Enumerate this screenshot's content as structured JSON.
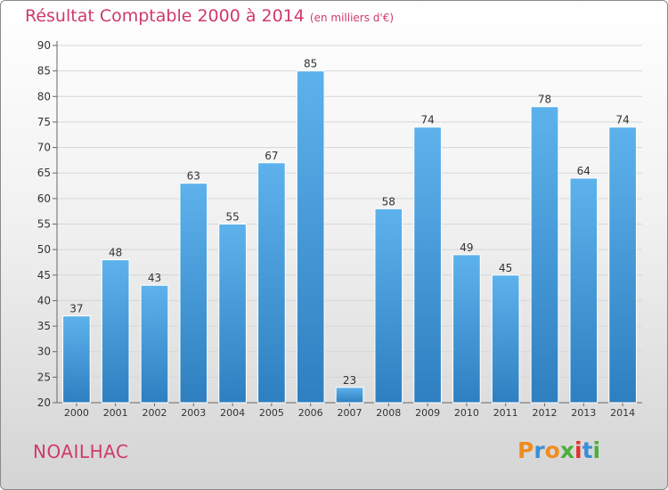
{
  "header": {
    "title": "Résultat Comptable 2000 à 2014",
    "subtitle": "(en milliers d'€)"
  },
  "region": "NOAILHAC",
  "logo": {
    "text": "Proxiti",
    "letter_colors": [
      "#f08c1e",
      "#3a8fd6",
      "#f08c1e",
      "#4cae3c",
      "#e23030",
      "#3a8fd6",
      "#4cae3c"
    ]
  },
  "colors": {
    "bar_top": "#5db2ec",
    "bar_bottom": "#2e7fc0",
    "bar_edge": "#ffffff",
    "grid": "#d6d6d6",
    "axis_text": "#333333",
    "title": "#d03a68"
  },
  "chart_data": {
    "type": "bar",
    "categories": [
      "2000",
      "2001",
      "2002",
      "2003",
      "2004",
      "2005",
      "2006",
      "2007",
      "2008",
      "2009",
      "2010",
      "2011",
      "2012",
      "2013",
      "2014"
    ],
    "values": [
      37,
      48,
      43,
      63,
      55,
      67,
      85,
      23,
      58,
      74,
      49,
      45,
      78,
      64,
      74
    ],
    "ylim": [
      20,
      90
    ],
    "yticks": [
      20,
      25,
      30,
      35,
      40,
      45,
      50,
      55,
      60,
      65,
      70,
      75,
      80,
      85,
      90
    ],
    "grid": true,
    "data_labels": true
  }
}
